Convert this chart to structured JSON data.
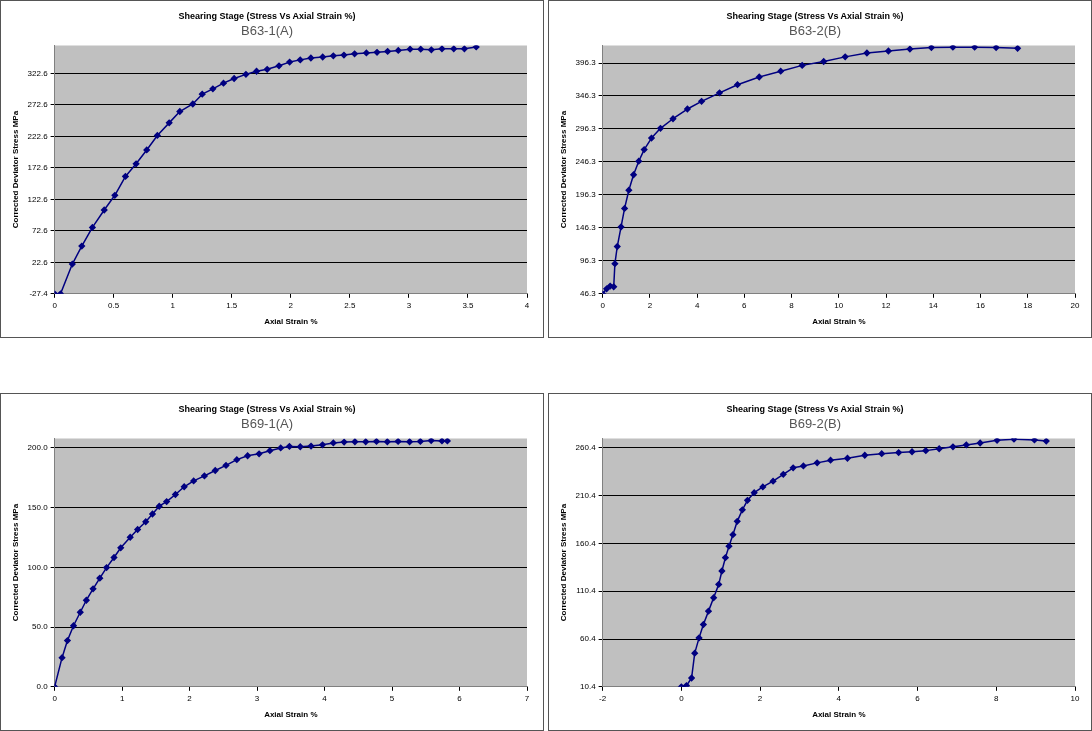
{
  "chart_data": [
    {
      "type": "line",
      "title": "Shearing Stage (Stress Vs Axial Strain %)",
      "subtitle": "B63-1(A)",
      "xlabel": "Axial Strain %",
      "ylabel": "Corrected Deviator Stress MPa",
      "marker": "diamond",
      "grid": "y",
      "xlim": [
        0,
        4
      ],
      "xticks": [
        0,
        0.5,
        1,
        1.5,
        2,
        2.5,
        3,
        3.5,
        4
      ],
      "ylim": [
        -27.4,
        367
      ],
      "yticks": [
        -27.4,
        22.6,
        72.6,
        122.6,
        172.6,
        222.6,
        272.6,
        322.6
      ],
      "series": [
        {
          "color": "#000080",
          "x": [
            0,
            0.05,
            0.15,
            0.23,
            0.32,
            0.42,
            0.51,
            0.6,
            0.69,
            0.78,
            0.87,
            0.97,
            1.06,
            1.17,
            1.25,
            1.34,
            1.43,
            1.52,
            1.62,
            1.71,
            1.8,
            1.9,
            1.99,
            2.08,
            2.17,
            2.27,
            2.36,
            2.45,
            2.54,
            2.64,
            2.73,
            2.82,
            2.91,
            3.01,
            3.1,
            3.19,
            3.28,
            3.38,
            3.47,
            3.57
          ],
          "values": [
            -27.4,
            -27.4,
            19.8,
            48.4,
            78,
            105.6,
            129,
            159,
            179,
            201,
            224,
            244,
            262,
            274,
            289.6,
            298,
            307,
            314.5,
            321,
            326,
            329,
            334.6,
            340.5,
            344,
            347,
            348.6,
            350.5,
            351.7,
            353.6,
            355,
            356,
            357.5,
            359,
            361,
            361,
            360,
            361.6,
            361.6,
            361.6,
            364.6
          ]
        }
      ]
    },
    {
      "type": "line",
      "title": "Shearing Stage (Stress Vs Axial Strain %)",
      "subtitle": "B63-2(B)",
      "xlabel": "Axial Strain %",
      "ylabel": "Corrected Deviator Stress MPa",
      "marker": "diamond",
      "grid": "y",
      "xlim": [
        0,
        20
      ],
      "xticks": [
        0,
        2,
        4,
        6,
        8,
        10,
        12,
        14,
        16,
        18,
        20
      ],
      "ylim": [
        46.3,
        423
      ],
      "yticks": [
        46.3,
        96.3,
        146.3,
        196.3,
        246.3,
        296.3,
        346.3,
        396.3
      ],
      "series": [
        {
          "color": "#000080",
          "x": [
            0,
            0.17,
            0.32,
            0.47,
            0.52,
            0.62,
            0.78,
            0.93,
            1.11,
            1.31,
            1.53,
            1.76,
            2.07,
            2.45,
            2.98,
            3.59,
            4.19,
            4.95,
            5.71,
            6.63,
            7.54,
            8.45,
            9.36,
            10.27,
            11.19,
            12.1,
            13.01,
            13.92,
            14.83,
            15.75,
            16.66,
            17.57
          ],
          "values": [
            46.3,
            53.9,
            58,
            57,
            92,
            118,
            147.7,
            175.8,
            203.4,
            226.8,
            247.4,
            265,
            282.5,
            297.2,
            311.8,
            326.5,
            338.2,
            351.1,
            363.4,
            375.1,
            383.9,
            392.7,
            398.6,
            405.6,
            411.5,
            414.5,
            417.4,
            419.7,
            420.3,
            420.3,
            419.7,
            418.5
          ]
        }
      ]
    },
    {
      "type": "line",
      "title": "Shearing Stage (Stress Vs Axial Strain %)",
      "subtitle": "B69-1(A)",
      "xlabel": "Axial Strain %",
      "ylabel": "Corrected Deviator Stress MPa",
      "marker": "diamond",
      "grid": "y",
      "xlim": [
        0,
        7
      ],
      "xticks": [
        0,
        1,
        2,
        3,
        4,
        5,
        6,
        7
      ],
      "ylim": [
        0,
        208
      ],
      "yticks": [
        {
          "value": 0,
          "label": "0.0"
        },
        {
          "value": 50,
          "label": "50.0"
        },
        {
          "value": 100,
          "label": "100.0"
        },
        {
          "value": 150,
          "label": "150.0"
        },
        {
          "value": 200,
          "label": "200.0"
        }
      ],
      "series": [
        {
          "color": "#000080",
          "x": [
            0,
            0.11,
            0.19,
            0.28,
            0.38,
            0.47,
            0.57,
            0.67,
            0.77,
            0.88,
            0.98,
            1.12,
            1.23,
            1.35,
            1.45,
            1.55,
            1.66,
            1.79,
            1.92,
            2.06,
            2.22,
            2.38,
            2.54,
            2.7,
            2.86,
            3.03,
            3.19,
            3.35,
            3.48,
            3.64,
            3.8,
            3.97,
            4.13,
            4.29,
            4.45,
            4.61,
            4.77,
            4.93,
            5.09,
            5.26,
            5.42,
            5.58,
            5.74,
            5.82
          ],
          "values": [
            0,
            24.4,
            38.7,
            51.1,
            62.4,
            72.5,
            82,
            91,
            99.8,
            108.3,
            116.4,
            125.2,
            131.7,
            138.2,
            144.7,
            151.2,
            155.1,
            161,
            167.5,
            172.4,
            176.6,
            181.1,
            185.4,
            190.2,
            193.5,
            195.1,
            197.7,
            200,
            201.3,
            201,
            201.6,
            202.6,
            204.2,
            204.9,
            205.2,
            205.2,
            205.5,
            205.2,
            205.5,
            205.2,
            205.5,
            206.2,
            205.9,
            205.9
          ]
        }
      ]
    },
    {
      "type": "line",
      "title": "Shearing Stage (Stress Vs Axial Strain %)",
      "subtitle": "B69-2(B)",
      "xlabel": "Axial Strain %",
      "ylabel": "Corrected Deviator Stress MPa",
      "marker": "diamond",
      "grid": "y",
      "xlim": [
        -2,
        10
      ],
      "xticks": [
        -2,
        0,
        2,
        4,
        6,
        8,
        10
      ],
      "ylim": [
        10.4,
        270.4
      ],
      "yticks": [
        10.4,
        60.4,
        110.4,
        160.4,
        210.4,
        260.4
      ],
      "series": [
        {
          "color": "#000080",
          "x": [
            0,
            0.13,
            0.26,
            0.34,
            0.45,
            0.56,
            0.69,
            0.82,
            0.95,
            1.03,
            1.12,
            1.21,
            1.31,
            1.42,
            1.55,
            1.68,
            1.85,
            2.07,
            2.33,
            2.59,
            2.84,
            3.1,
            3.45,
            3.79,
            4.22,
            4.66,
            5.09,
            5.52,
            5.86,
            6.21,
            6.55,
            6.9,
            7.24,
            7.59,
            8.02,
            8.45,
            8.97,
            9.27
          ],
          "values": [
            10.4,
            11.6,
            19.6,
            45.6,
            61.6,
            75.6,
            89.6,
            103.6,
            117.6,
            131.6,
            145.6,
            157.6,
            169.6,
            183.6,
            195.6,
            205.6,
            213.6,
            219.6,
            225.6,
            232.8,
            239.6,
            241.6,
            244.8,
            247.6,
            249.6,
            252.8,
            254.4,
            255.6,
            256.4,
            257.6,
            259.6,
            261.6,
            263.6,
            265.6,
            268.4,
            269.6,
            268.8,
            267.6
          ]
        }
      ]
    }
  ]
}
